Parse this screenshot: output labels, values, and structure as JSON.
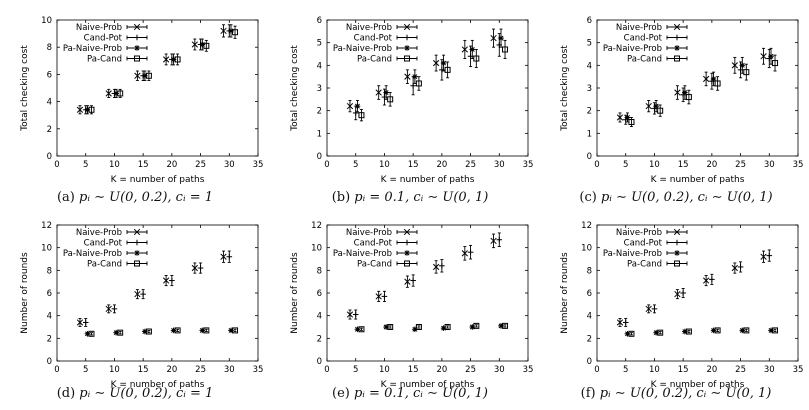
{
  "colors": {
    "ink": "#000000",
    "background": "#ffffff"
  },
  "chart_data": [
    {
      "id": "a",
      "type": "scatter",
      "caption": "(a) p_i ~ U(0,0.2), c_i = 1",
      "caption_parts": {
        "letter": "(a)",
        "math": "pᵢ ∼ U(0, 0.2), cᵢ = 1"
      },
      "xlabel": "K = number of paths",
      "ylabel": "Total checking cost",
      "xlim": [
        0,
        35
      ],
      "ylim": [
        0,
        10
      ],
      "xticks": [
        "0",
        "5",
        "10",
        "15",
        "20",
        "25",
        "30",
        "35"
      ],
      "yticks": [
        "0",
        "2",
        "4",
        "6",
        "8",
        "10"
      ],
      "grid": false,
      "error_bars": true,
      "legend_position": "top-left",
      "series": [
        {
          "name": "Naive-Prob",
          "marker": "x",
          "x": [
            4,
            9,
            14,
            19,
            24,
            29
          ],
          "y": [
            3.4,
            4.6,
            5.9,
            7.1,
            8.2,
            9.2
          ],
          "err": [
            0.3,
            0.3,
            0.35,
            0.4,
            0.4,
            0.45
          ]
        },
        {
          "name": "Cand-Pot",
          "marker": "+",
          "x": [
            5,
            10,
            15,
            20,
            25,
            30
          ],
          "y": [
            3.4,
            4.6,
            5.9,
            7.1,
            8.2,
            9.2
          ],
          "err": [
            0.3,
            0.3,
            0.35,
            0.4,
            0.4,
            0.45
          ]
        },
        {
          "name": "Pa-Naive-Prob",
          "marker": "asterisk",
          "x": [
            5.3,
            10.3,
            15.3,
            20.3,
            25.3,
            30.3
          ],
          "y": [
            3.4,
            4.6,
            5.9,
            7.1,
            8.2,
            9.2
          ],
          "err": [
            0.3,
            0.3,
            0.35,
            0.4,
            0.4,
            0.45
          ]
        },
        {
          "name": "Pa-Cand",
          "marker": "square",
          "x": [
            6,
            11,
            16,
            21,
            26,
            31
          ],
          "y": [
            3.4,
            4.6,
            5.9,
            7.1,
            8.1,
            9.1
          ],
          "err": [
            0.3,
            0.3,
            0.35,
            0.4,
            0.4,
            0.45
          ]
        }
      ]
    },
    {
      "id": "b",
      "type": "scatter",
      "caption": "(b) p_i = 0.1, c_i ~ U(0,1)",
      "caption_parts": {
        "letter": "(b)",
        "math": "pᵢ = 0.1, cᵢ ∼ U(0, 1)"
      },
      "xlabel": "K = number of paths",
      "ylabel": "Total checking cost",
      "xlim": [
        0,
        35
      ],
      "ylim": [
        0,
        6
      ],
      "xticks": [
        "0",
        "5",
        "10",
        "15",
        "20",
        "25",
        "30",
        "35"
      ],
      "yticks": [
        "0",
        "1",
        "2",
        "3",
        "4",
        "5",
        "6"
      ],
      "grid": false,
      "error_bars": true,
      "legend_position": "top-left",
      "series": [
        {
          "name": "Naive-Prob",
          "marker": "x",
          "x": [
            4,
            9,
            14,
            19,
            24,
            29
          ],
          "y": [
            2.2,
            2.8,
            3.5,
            4.1,
            4.7,
            5.2
          ],
          "err": [
            0.25,
            0.3,
            0.3,
            0.35,
            0.4,
            0.4
          ]
        },
        {
          "name": "Cand-Pot",
          "marker": "+",
          "x": [
            5,
            10,
            15,
            20,
            25,
            30
          ],
          "y": [
            1.9,
            2.6,
            3.1,
            3.8,
            4.4,
            4.9
          ],
          "err": [
            0.3,
            0.35,
            0.4,
            0.45,
            0.45,
            0.5
          ]
        },
        {
          "name": "Pa-Naive-Prob",
          "marker": "asterisk",
          "x": [
            5.3,
            10.3,
            15.3,
            20.3,
            25.3,
            30.3
          ],
          "y": [
            2.2,
            2.8,
            3.5,
            4.1,
            4.7,
            5.2
          ],
          "err": [
            0.25,
            0.3,
            0.3,
            0.35,
            0.4,
            0.4
          ]
        },
        {
          "name": "Pa-Cand",
          "marker": "square",
          "x": [
            6,
            11,
            16,
            21,
            26,
            31
          ],
          "y": [
            1.8,
            2.5,
            3.2,
            3.8,
            4.3,
            4.7
          ],
          "err": [
            0.25,
            0.3,
            0.3,
            0.35,
            0.4,
            0.4
          ]
        }
      ]
    },
    {
      "id": "c",
      "type": "scatter",
      "caption": "(c) p_i ~ U(0,0.2), c_i ~ U(0,1)",
      "caption_parts": {
        "letter": "(c)",
        "math": "pᵢ ∼ U(0, 0.2), cᵢ ∼ U(0, 1)"
      },
      "xlabel": "K = number of paths",
      "ylabel": "Total checking cost",
      "xlim": [
        0,
        35
      ],
      "ylim": [
        0,
        6
      ],
      "xticks": [
        "0",
        "5",
        "10",
        "15",
        "20",
        "25",
        "30",
        "35"
      ],
      "yticks": [
        "0",
        "1",
        "2",
        "3",
        "4",
        "5",
        "6"
      ],
      "grid": false,
      "error_bars": true,
      "legend_position": "top-left",
      "series": [
        {
          "name": "Naive-Prob",
          "marker": "x",
          "x": [
            4,
            9,
            14,
            19,
            24,
            29
          ],
          "y": [
            1.7,
            2.2,
            2.8,
            3.4,
            4.0,
            4.4
          ],
          "err": [
            0.2,
            0.25,
            0.3,
            0.3,
            0.35,
            0.35
          ]
        },
        {
          "name": "Cand-Pot",
          "marker": "+",
          "x": [
            5,
            10,
            15,
            20,
            25,
            30
          ],
          "y": [
            1.6,
            2.1,
            2.7,
            3.3,
            3.8,
            4.3
          ],
          "err": [
            0.2,
            0.25,
            0.3,
            0.35,
            0.35,
            0.4
          ]
        },
        {
          "name": "Pa-Naive-Prob",
          "marker": "asterisk",
          "x": [
            5.3,
            10.3,
            15.3,
            20.3,
            25.3,
            30.3
          ],
          "y": [
            1.7,
            2.2,
            2.8,
            3.4,
            4.0,
            4.4
          ],
          "err": [
            0.2,
            0.25,
            0.3,
            0.3,
            0.35,
            0.35
          ]
        },
        {
          "name": "Pa-Cand",
          "marker": "square",
          "x": [
            6,
            11,
            16,
            21,
            26,
            31
          ],
          "y": [
            1.5,
            2.0,
            2.6,
            3.2,
            3.7,
            4.1
          ],
          "err": [
            0.2,
            0.25,
            0.3,
            0.3,
            0.35,
            0.35
          ]
        }
      ]
    },
    {
      "id": "d",
      "type": "scatter",
      "caption": "(d) p_i ~ U(0,0.2), c_i = 1",
      "caption_parts": {
        "letter": "(d)",
        "math": "pᵢ ∼ U(0, 0.2), cᵢ = 1"
      },
      "xlabel": "K = number of paths",
      "ylabel": "Number of rounds",
      "xlim": [
        0,
        35
      ],
      "ylim": [
        0,
        12
      ],
      "xticks": [
        "0",
        "5",
        "10",
        "15",
        "20",
        "25",
        "30",
        "35"
      ],
      "yticks": [
        "0",
        "2",
        "4",
        "6",
        "8",
        "10",
        "12"
      ],
      "grid": false,
      "error_bars": true,
      "legend_position": "top-left",
      "series": [
        {
          "name": "Naive-Prob",
          "marker": "x",
          "x": [
            4,
            9,
            14,
            19,
            24,
            29
          ],
          "y": [
            3.4,
            4.6,
            5.9,
            7.1,
            8.2,
            9.2
          ],
          "err": [
            0.35,
            0.35,
            0.4,
            0.45,
            0.45,
            0.5
          ]
        },
        {
          "name": "Cand-Pot",
          "marker": "+",
          "x": [
            5,
            10,
            15,
            20,
            25,
            30
          ],
          "y": [
            3.4,
            4.6,
            5.9,
            7.1,
            8.2,
            9.2
          ],
          "err": [
            0.35,
            0.35,
            0.4,
            0.45,
            0.45,
            0.5
          ]
        },
        {
          "name": "Pa-Naive-Prob",
          "marker": "asterisk",
          "x": [
            5.3,
            10.3,
            15.3,
            20.3,
            25.3,
            30.3
          ],
          "y": [
            2.4,
            2.5,
            2.6,
            2.7,
            2.7,
            2.7
          ],
          "err": [
            0.1,
            0.1,
            0.1,
            0.1,
            0.1,
            0.1
          ]
        },
        {
          "name": "Pa-Cand",
          "marker": "square",
          "x": [
            6,
            11,
            16,
            21,
            26,
            31
          ],
          "y": [
            2.4,
            2.5,
            2.6,
            2.7,
            2.7,
            2.7
          ],
          "err": [
            0.1,
            0.1,
            0.1,
            0.1,
            0.1,
            0.1
          ]
        }
      ]
    },
    {
      "id": "e",
      "type": "scatter",
      "caption": "(e) p_i = 0.1, c_i ~ U(0,1)",
      "caption_parts": {
        "letter": "(e)",
        "math": "pᵢ = 0.1, cᵢ ∼ U(0, 1)"
      },
      "xlabel": "K = number of paths",
      "ylabel": "Number of rounds",
      "xlim": [
        0,
        35
      ],
      "ylim": [
        0,
        12
      ],
      "xticks": [
        "0",
        "5",
        "10",
        "15",
        "20",
        "25",
        "30",
        "35"
      ],
      "yticks": [
        "0",
        "2",
        "4",
        "6",
        "8",
        "10",
        "12"
      ],
      "grid": false,
      "error_bars": true,
      "legend_position": "top-left",
      "series": [
        {
          "name": "Naive-Prob",
          "marker": "x",
          "x": [
            4,
            9,
            14,
            19,
            24,
            29
          ],
          "y": [
            4.1,
            5.7,
            7.0,
            8.3,
            9.5,
            10.6
          ],
          "err": [
            0.4,
            0.45,
            0.5,
            0.55,
            0.6,
            0.6
          ]
        },
        {
          "name": "Cand-Pot",
          "marker": "+",
          "x": [
            5,
            10,
            15,
            20,
            25,
            30
          ],
          "y": [
            4.1,
            5.7,
            7.1,
            8.4,
            9.6,
            10.7
          ],
          "err": [
            0.4,
            0.45,
            0.5,
            0.55,
            0.6,
            0.6
          ]
        },
        {
          "name": "Pa-Naive-Prob",
          "marker": "asterisk",
          "x": [
            5.3,
            10.3,
            15.3,
            20.3,
            25.3,
            30.3
          ],
          "y": [
            2.8,
            3.0,
            2.8,
            2.9,
            3.0,
            3.1
          ],
          "err": [
            0.1,
            0.1,
            0.1,
            0.1,
            0.1,
            0.1
          ]
        },
        {
          "name": "Pa-Cand",
          "marker": "square",
          "x": [
            6,
            11,
            16,
            21,
            26,
            31
          ],
          "y": [
            2.8,
            3.0,
            3.0,
            3.0,
            3.1,
            3.1
          ],
          "err": [
            0.1,
            0.1,
            0.1,
            0.1,
            0.1,
            0.1
          ]
        }
      ]
    },
    {
      "id": "f",
      "type": "scatter",
      "caption": "(f) p_i ~ U(0,0.2), c_i ~ U(0,1)",
      "caption_parts": {
        "letter": "(f)",
        "math": "pᵢ ∼ U(0, 0.2), cᵢ ∼ U(0, 1)"
      },
      "xlabel": "K = number of paths",
      "ylabel": "Number of rounds",
      "xlim": [
        0,
        35
      ],
      "ylim": [
        0,
        12
      ],
      "xticks": [
        "0",
        "5",
        "10",
        "15",
        "20",
        "25",
        "30",
        "35"
      ],
      "yticks": [
        "0",
        "2",
        "4",
        "6",
        "8",
        "10",
        "12"
      ],
      "grid": false,
      "error_bars": true,
      "legend_position": "top-left",
      "series": [
        {
          "name": "Naive-Prob",
          "marker": "x",
          "x": [
            4,
            9,
            14,
            19,
            24,
            29
          ],
          "y": [
            3.4,
            4.6,
            5.9,
            7.1,
            8.2,
            9.2
          ],
          "err": [
            0.35,
            0.35,
            0.4,
            0.45,
            0.45,
            0.5
          ]
        },
        {
          "name": "Cand-Pot",
          "marker": "+",
          "x": [
            5,
            10,
            15,
            20,
            25,
            30
          ],
          "y": [
            3.4,
            4.6,
            6.0,
            7.2,
            8.3,
            9.3
          ],
          "err": [
            0.35,
            0.35,
            0.4,
            0.45,
            0.45,
            0.5
          ]
        },
        {
          "name": "Pa-Naive-Prob",
          "marker": "asterisk",
          "x": [
            5.3,
            10.3,
            15.3,
            20.3,
            25.3,
            30.3
          ],
          "y": [
            2.4,
            2.5,
            2.6,
            2.7,
            2.7,
            2.7
          ],
          "err": [
            0.1,
            0.1,
            0.1,
            0.1,
            0.1,
            0.1
          ]
        },
        {
          "name": "Pa-Cand",
          "marker": "square",
          "x": [
            6,
            11,
            16,
            21,
            26,
            31
          ],
          "y": [
            2.4,
            2.5,
            2.6,
            2.7,
            2.7,
            2.7
          ],
          "err": [
            0.1,
            0.1,
            0.1,
            0.1,
            0.1,
            0.1
          ]
        }
      ]
    }
  ]
}
